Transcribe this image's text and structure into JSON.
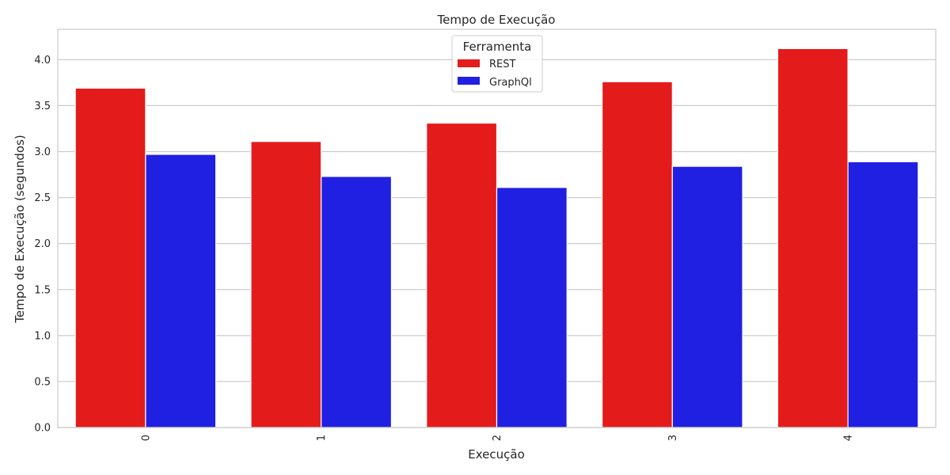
{
  "chart_data": {
    "type": "bar",
    "title": "Tempo de Execução",
    "xlabel": "Execução",
    "ylabel": "Tempo de Execução (segundos)",
    "categories": [
      "0",
      "1",
      "2",
      "3",
      "4"
    ],
    "series": [
      {
        "name": "REST",
        "values": [
          3.69,
          3.11,
          3.31,
          3.76,
          4.12
        ]
      },
      {
        "name": "GraphQl",
        "values": [
          2.97,
          2.73,
          2.61,
          2.84,
          2.89
        ]
      }
    ],
    "ylim": [
      0,
      4.33
    ],
    "yticks": [
      "0.0",
      "0.5",
      "1.0",
      "1.5",
      "2.0",
      "2.5",
      "3.0",
      "3.5",
      "4.0"
    ],
    "grid": true,
    "legend": {
      "title": "Ferramenta",
      "position": "top-center"
    },
    "colors": {
      "REST": "#e41b1b",
      "GraphQl": "#2020e2",
      "grid": "#cccccc",
      "frame": "#cccccc"
    }
  }
}
